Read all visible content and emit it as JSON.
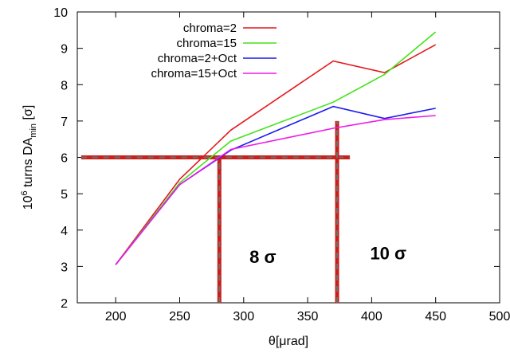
{
  "chart_data": {
    "type": "line",
    "title": "",
    "xlabel": "θ[μrad]",
    "ylabel_main": "10",
    "ylabel_sup": "6",
    "ylabel_mid": " turns DA",
    "ylabel_sub": "min",
    "ylabel_end": " [σ]",
    "xlim": [
      170,
      500
    ],
    "ylim": [
      2,
      10
    ],
    "xticks": [
      200,
      250,
      300,
      350,
      400,
      450,
      500
    ],
    "yticks": [
      2,
      3,
      4,
      5,
      6,
      7,
      8,
      9,
      10
    ],
    "grid": false,
    "legend_position": "top-right",
    "series": [
      {
        "name": "chroma=2",
        "color": "#e41a1c",
        "x": [
          200,
          250,
          290,
          370,
          410,
          450
        ],
        "y": [
          3.05,
          5.4,
          6.75,
          8.65,
          8.33,
          9.1
        ]
      },
      {
        "name": "chroma=15",
        "color": "#44e31a",
        "x": [
          200,
          250,
          290,
          370,
          410,
          450
        ],
        "y": [
          3.05,
          5.3,
          6.45,
          7.52,
          8.28,
          9.45
        ]
      },
      {
        "name": "chroma=2+Oct",
        "color": "#1a1aef",
        "x": [
          200,
          250,
          290,
          370,
          410,
          450
        ],
        "y": [
          3.05,
          5.25,
          6.2,
          7.4,
          7.07,
          7.35
        ]
      },
      {
        "name": "chroma=15+Oct",
        "color": "#ee1ae8",
        "x": [
          200,
          250,
          290,
          370,
          410,
          450
        ],
        "y": [
          3.05,
          5.25,
          6.22,
          6.8,
          7.04,
          7.15
        ]
      }
    ],
    "reference_lines": {
      "color": "#c8201a",
      "horizontal": {
        "y": 6,
        "x_from": 173,
        "x_to": 383
      },
      "verticals": [
        {
          "x": 281,
          "y_from": 2,
          "y_to": 6
        },
        {
          "x": 373,
          "y_from": 2,
          "y_to": 7
        }
      ]
    },
    "annotations": [
      {
        "text": "8 σ",
        "x": 315,
        "y": 3.1
      },
      {
        "text": "10 σ",
        "x": 413,
        "y": 3.2
      }
    ]
  }
}
